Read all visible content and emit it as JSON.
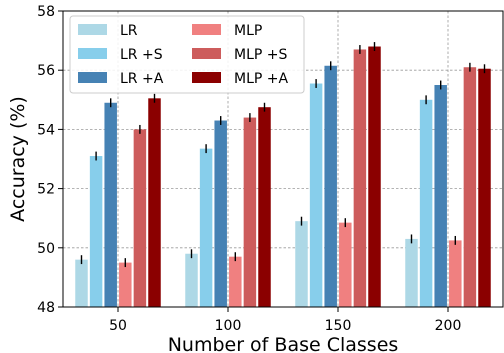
{
  "chart_data": {
    "type": "bar",
    "title": "",
    "xlabel": "Number of Base Classes",
    "ylabel": "Accuracy (%)",
    "categories": [
      "50",
      "100",
      "150",
      "200"
    ],
    "ylim": [
      48,
      58
    ],
    "yticks": [
      48,
      50,
      52,
      54,
      56,
      58
    ],
    "grid": true,
    "legend_position": "top-left",
    "legend_columns": 2,
    "series": [
      {
        "name": "LR",
        "color": "#add8e6",
        "values": [
          49.6,
          49.8,
          50.9,
          50.3
        ],
        "errors": [
          0.15,
          0.15,
          0.15,
          0.15
        ]
      },
      {
        "name": "LR +S",
        "color": "#87ceeb",
        "values": [
          53.1,
          53.35,
          55.55,
          55.0
        ],
        "errors": [
          0.15,
          0.15,
          0.15,
          0.15
        ]
      },
      {
        "name": "LR +A",
        "color": "#4682b4",
        "values": [
          54.9,
          54.3,
          56.15,
          55.5
        ],
        "errors": [
          0.15,
          0.15,
          0.15,
          0.15
        ]
      },
      {
        "name": "MLP",
        "color": "#f08080",
        "values": [
          49.5,
          49.7,
          50.85,
          50.25
        ],
        "errors": [
          0.15,
          0.15,
          0.15,
          0.15
        ]
      },
      {
        "name": "MLP +S",
        "color": "#cd5c5c",
        "values": [
          54.0,
          54.4,
          56.7,
          56.1
        ],
        "errors": [
          0.15,
          0.15,
          0.15,
          0.15
        ]
      },
      {
        "name": "MLP +A",
        "color": "#8b0000",
        "values": [
          55.05,
          54.75,
          56.8,
          56.05
        ],
        "errors": [
          0.15,
          0.15,
          0.15,
          0.15
        ]
      }
    ]
  }
}
